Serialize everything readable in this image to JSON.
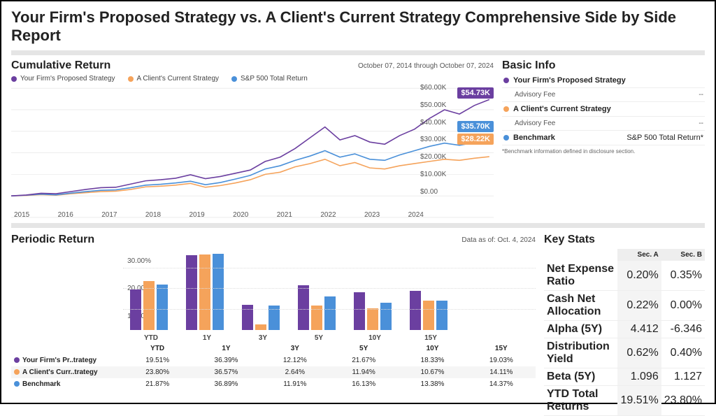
{
  "page_title": "Your Firm's Proposed Strategy vs. A Client's Current Strategy Comprehensive Side by Side Report",
  "colors": {
    "proposed": "#6b3fa0",
    "client": "#f5a35b",
    "benchmark": "#4a90d9",
    "grid": "#e0e0e0",
    "bg": "#ffffff"
  },
  "cumulative": {
    "title": "Cumulative Return",
    "date_range": "October 07, 2014 through October 07, 2024",
    "legend": [
      "Your Firm's Proposed Strategy",
      "A Client's Current Strategy",
      "S&P 500 Total Return"
    ],
    "ylim": [
      0,
      60000
    ],
    "yticks": [
      "$60.00K",
      "$50.00K",
      "$40.00K",
      "$30.00K",
      "$20.00K",
      "$10.00K",
      "$0.00"
    ],
    "xticks": [
      "2015",
      "2016",
      "2017",
      "2018",
      "2019",
      "2020",
      "2021",
      "2022",
      "2023",
      "2024"
    ],
    "end_badges": {
      "proposed": "$54.73K",
      "benchmark": "$35.70K",
      "client": "$28.22K"
    },
    "series": {
      "proposed": [
        10000,
        10400,
        11200,
        11000,
        12000,
        13000,
        13800,
        14000,
        15500,
        17000,
        17500,
        18200,
        19800,
        18000,
        19000,
        20500,
        22000,
        26000,
        28000,
        32000,
        37000,
        42000,
        36000,
        38000,
        35000,
        34000,
        38000,
        41000,
        46000,
        50000,
        48000,
        52000,
        54730
      ],
      "client": [
        10000,
        10200,
        10600,
        10300,
        11000,
        11500,
        12000,
        12200,
        13000,
        14200,
        14500,
        15000,
        15800,
        14000,
        14800,
        16000,
        17500,
        20000,
        21000,
        23500,
        25000,
        27000,
        24000,
        25500,
        23000,
        22500,
        24000,
        25000,
        26000,
        27000,
        26500,
        27500,
        28220
      ],
      "benchmark": [
        10000,
        10300,
        10800,
        10500,
        11300,
        12000,
        12600,
        12800,
        13800,
        15000,
        15400,
        16000,
        16800,
        15200,
        16200,
        17800,
        19500,
        22500,
        24000,
        26500,
        28500,
        31000,
        28000,
        29500,
        27000,
        26500,
        29000,
        31000,
        33000,
        34500,
        33500,
        34800,
        35700
      ]
    }
  },
  "basic_info": {
    "title": "Basic Info",
    "rows": [
      {
        "dot": "proposed",
        "label": "Your Firm's Proposed Strategy",
        "sub_label": "Advisory Fee",
        "sub_value": "--"
      },
      {
        "dot": "client",
        "label": "A Client's Current Strategy",
        "sub_label": "Advisory Fee",
        "sub_value": "--"
      },
      {
        "dot": "benchmark",
        "label": "Benchmark",
        "right": "S&P 500 Total Return*"
      }
    ],
    "note": "*Benchmark information defined in disclosure section."
  },
  "periodic": {
    "title": "Periodic Return",
    "as_of": "Data as of: Oct. 4, 2024",
    "yticks": [
      "30.00%",
      "20.00%",
      "10.00%"
    ],
    "ymax": 40,
    "categories": [
      "YTD",
      "1Y",
      "3Y",
      "5Y",
      "10Y",
      "15Y"
    ],
    "rows": [
      {
        "dot": "proposed",
        "label": "Your Firm's Pr..trategy",
        "values": [
          "19.51%",
          "36.39%",
          "12.12%",
          "21.67%",
          "18.33%",
          "19.03%"
        ],
        "nums": [
          19.51,
          36.39,
          12.12,
          21.67,
          18.33,
          19.03
        ]
      },
      {
        "dot": "client",
        "label": "A Client's Curr..trategy",
        "values": [
          "23.80%",
          "36.57%",
          "2.64%",
          "11.94%",
          "10.67%",
          "14.11%"
        ],
        "nums": [
          23.8,
          36.57,
          2.64,
          11.94,
          10.67,
          14.11
        ]
      },
      {
        "dot": "benchmark",
        "label": "Benchmark",
        "values": [
          "21.87%",
          "36.89%",
          "11.91%",
          "16.13%",
          "13.38%",
          "14.37%"
        ],
        "nums": [
          21.87,
          36.89,
          11.91,
          16.13,
          13.38,
          14.37
        ]
      }
    ]
  },
  "key_stats": {
    "title": "Key Stats",
    "cols": [
      "Sec. A",
      "Sec. B"
    ],
    "rows": [
      {
        "label": "Net Expense Ratio",
        "a": "0.20%",
        "b": "0.35%"
      },
      {
        "label": "Cash Net Allocation",
        "a": "0.22%",
        "b": "0.00%"
      },
      {
        "label": "Alpha (5Y)",
        "a": "4.412",
        "b": "-6.346"
      },
      {
        "label": "Distribution Yield",
        "a": "0.62%",
        "b": "0.40%"
      },
      {
        "label": "Beta (5Y)",
        "a": "1.096",
        "b": "1.127"
      },
      {
        "label": "YTD Total Returns",
        "a": "19.51%",
        "b": "23.80%"
      }
    ]
  }
}
